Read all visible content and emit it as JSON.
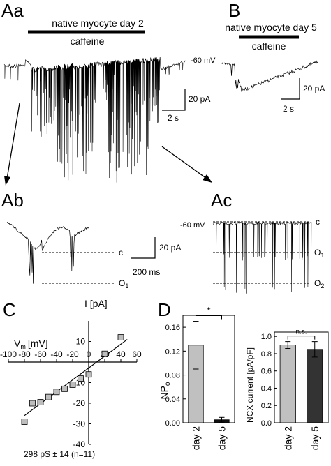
{
  "panels": {
    "Aa": "Aa",
    "B": "B",
    "Ab": "Ab",
    "Ac": "Ac",
    "C": "C",
    "D": "D"
  },
  "traces": {
    "aa_title": "native myocyte day 2",
    "aa_drug": "caffeine",
    "b_title": "native myocyte day 5",
    "b_drug": "caffeine",
    "holding": "-60 mV",
    "ac_holding": "-60 mV",
    "scale_current": "20 pA",
    "scale_time_s": "2 s",
    "scale_time_ms": "200 ms",
    "level_c": "c",
    "level_o1": "O",
    "level_o1_sub": "1",
    "level_o2": "O",
    "level_o2_sub": "2"
  },
  "chart_data": [
    {
      "type": "scatter",
      "panel": "C",
      "xlabel": "V",
      "xlabel_sub": "m",
      "xlabel_unit": "[mV]",
      "ylabel": "I [pA]",
      "xlim": [
        -100,
        60
      ],
      "ylim": [
        -40,
        20
      ],
      "x_ticks": [
        -100,
        -80,
        -60,
        -40,
        -20,
        0,
        20,
        40,
        60
      ],
      "y_ticks": [
        10,
        -10,
        -20,
        -30,
        -40
      ],
      "points": [
        {
          "x": -80,
          "y": -29
        },
        {
          "x": -70,
          "y": -20
        },
        {
          "x": -60,
          "y": -19.5
        },
        {
          "x": -50,
          "y": -17
        },
        {
          "x": -40,
          "y": -14.5
        },
        {
          "x": -30,
          "y": -13
        },
        {
          "x": -20,
          "y": -11
        },
        {
          "x": -10,
          "y": -8
        },
        {
          "x": 0,
          "y": -6
        },
        {
          "x": 20,
          "y": 4
        },
        {
          "x": 40,
          "y": 12
        }
      ],
      "fit": {
        "x": [
          -80,
          48
        ],
        "y": [
          -26,
          11
        ]
      },
      "annotation": "298 pS ± 14 (n=11)"
    },
    {
      "type": "bar",
      "panel": "D-left",
      "ylabel": "NP",
      "ylabel_sub": "o",
      "categories": [
        "day 2",
        "day 5"
      ],
      "values": [
        0.13,
        0.005
      ],
      "errors": [
        0.04,
        0.004
      ],
      "colors": [
        "#c0c0c0",
        "#111111"
      ],
      "ylim": [
        0,
        0.18
      ],
      "y_ticks": [
        0.0,
        0.04,
        0.08,
        0.12,
        0.16
      ],
      "y_tick_labels": [
        "0.00",
        "0.04",
        "0.08",
        "0.12",
        "0.16"
      ],
      "significance": "*"
    },
    {
      "type": "bar",
      "panel": "D-right",
      "ylabel": "NCX current [pA/pF]",
      "categories": [
        "day 2",
        "day 5"
      ],
      "values": [
        0.9,
        0.85
      ],
      "errors": [
        0.04,
        0.09
      ],
      "colors": [
        "#c0c0c0",
        "#333333"
      ],
      "ylim": [
        0,
        1.05
      ],
      "y_ticks": [
        0.0,
        0.2,
        0.4,
        0.6,
        0.8,
        1.0
      ],
      "y_tick_labels": [
        "0.0",
        "0.2",
        "0.4",
        "0.6",
        "0.8",
        "1.0"
      ],
      "significance": "n.s."
    }
  ]
}
